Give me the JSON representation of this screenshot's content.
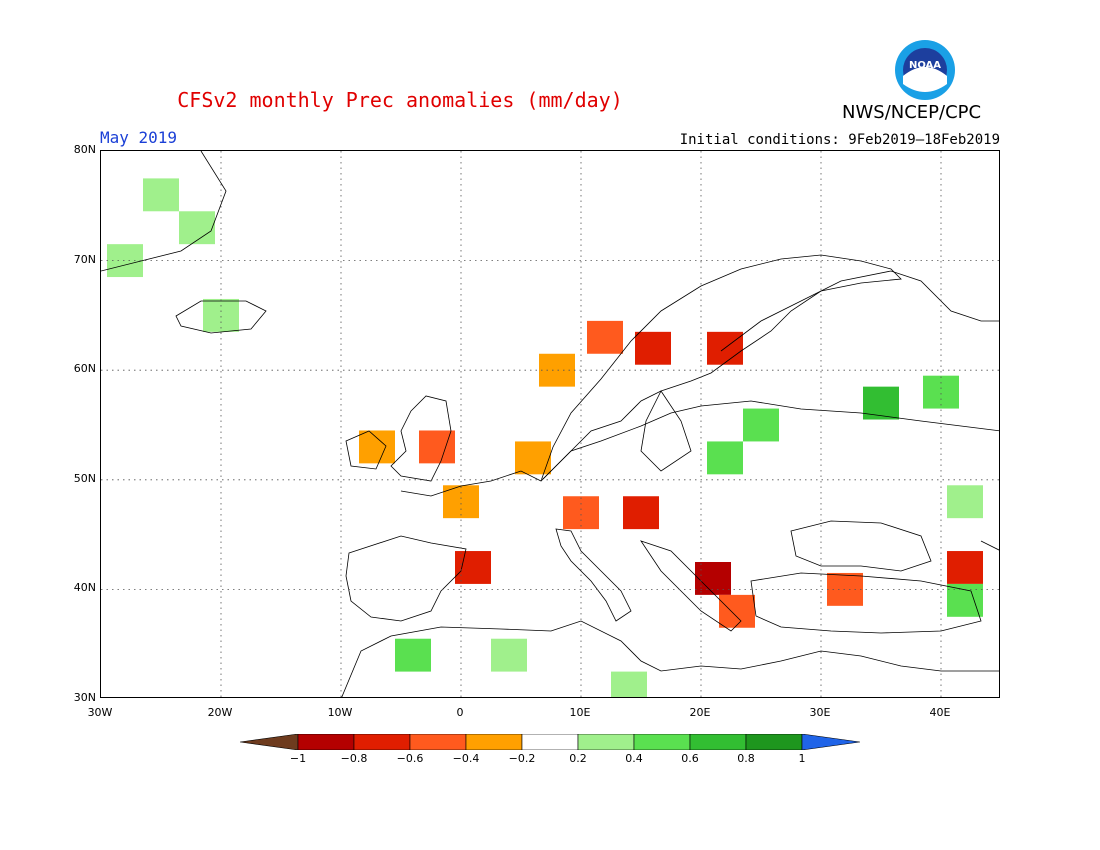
{
  "header": {
    "title": "CFSv2 monthly Prec anomalies (mm/day)",
    "org": "NWS/NCEP/CPC",
    "logo_text": "NOAA",
    "month": "May 2019",
    "initial_conditions": "Initial conditions: 9Feb2019–18Feb2019"
  },
  "axes": {
    "y_labels": [
      "80N",
      "70N",
      "60N",
      "50N",
      "40N",
      "30N"
    ],
    "x_labels": [
      "30W",
      "20W",
      "10W",
      "0",
      "10E",
      "20E",
      "30E",
      "40E"
    ]
  },
  "colorbar": {
    "ticks": [
      "−1",
      "−0.8",
      "−0.6",
      "−0.4",
      "−0.2",
      "0.2",
      "0.4",
      "0.6",
      "0.8",
      "1"
    ],
    "colors": [
      "#6e3b1e",
      "#b40000",
      "#e01e00",
      "#ff5a1e",
      "#ffa000",
      "#ffffff",
      "#a0f08c",
      "#5ae050",
      "#32be32",
      "#1e961e",
      "#2064e8"
    ]
  },
  "chart_data": {
    "type": "heatmap",
    "title": "CFSv2 monthly Prec anomalies (mm/day)",
    "xlim": [
      -30,
      45
    ],
    "ylim": [
      30,
      80
    ],
    "cells": [
      {
        "lon": -25,
        "lat": 76,
        "value": 0.3
      },
      {
        "lon": -22,
        "lat": 73,
        "value": 0.3
      },
      {
        "lon": -28,
        "lat": 70,
        "value": 0.3
      },
      {
        "lon": -20,
        "lat": 65,
        "value": 0.3
      },
      {
        "lon": 12,
        "lat": 63,
        "value": -0.5
      },
      {
        "lon": 16,
        "lat": 62,
        "value": -0.7
      },
      {
        "lon": 22,
        "lat": 62,
        "value": -0.7
      },
      {
        "lon": 8,
        "lat": 60,
        "value": -0.3
      },
      {
        "lon": -7,
        "lat": 53,
        "value": -0.3
      },
      {
        "lon": -2,
        "lat": 53,
        "value": -0.5
      },
      {
        "lon": 6,
        "lat": 52,
        "value": -0.3
      },
      {
        "lon": 0,
        "lat": 48,
        "value": -0.3
      },
      {
        "lon": 10,
        "lat": 47,
        "value": -0.5
      },
      {
        "lon": 15,
        "lat": 47,
        "value": -0.6
      },
      {
        "lon": 1,
        "lat": 42,
        "value": -0.7
      },
      {
        "lon": 21,
        "lat": 41,
        "value": -0.8
      },
      {
        "lon": 23,
        "lat": 38,
        "value": -0.5
      },
      {
        "lon": 32,
        "lat": 40,
        "value": -0.5
      },
      {
        "lon": 42,
        "lat": 42,
        "value": -0.7
      },
      {
        "lon": 25,
        "lat": 55,
        "value": 0.5
      },
      {
        "lon": 35,
        "lat": 57,
        "value": 0.6
      },
      {
        "lon": 40,
        "lat": 58,
        "value": 0.5
      },
      {
        "lon": 22,
        "lat": 52,
        "value": 0.4
      },
      {
        "lon": 42,
        "lat": 48,
        "value": 0.3
      },
      {
        "lon": 42,
        "lat": 39,
        "value": 0.5
      },
      {
        "lon": -4,
        "lat": 34,
        "value": 0.4
      },
      {
        "lon": 4,
        "lat": 34,
        "value": 0.3
      },
      {
        "lon": 14,
        "lat": 31,
        "value": 0.3
      }
    ]
  }
}
